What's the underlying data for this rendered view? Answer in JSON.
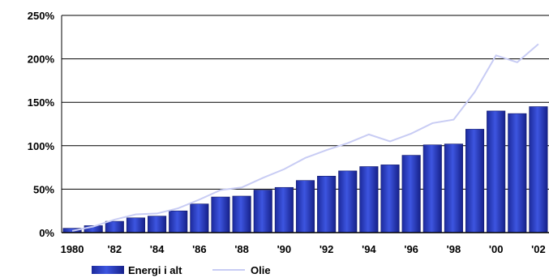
{
  "chart_data": {
    "type": "bar",
    "categories": [
      "1980",
      "1981",
      "1982",
      "1983",
      "1984",
      "1985",
      "1986",
      "1987",
      "1988",
      "1989",
      "1990",
      "1991",
      "1992",
      "1993",
      "1994",
      "1995",
      "1996",
      "1997",
      "1998",
      "1999",
      "2000",
      "2001",
      "2002"
    ],
    "x_tick_labels": [
      "1980",
      "",
      "'82",
      "",
      "'84",
      "",
      "'86",
      "",
      "'88",
      "",
      "'90",
      "",
      "'92",
      "",
      "'94",
      "",
      "'96",
      "",
      "'98",
      "",
      "'00",
      "",
      "'02"
    ],
    "series": [
      {
        "name": "Energi i alt",
        "type": "bar",
        "color": "#2f3fd0",
        "values": [
          5,
          8,
          13,
          17,
          19,
          25,
          33,
          41,
          42,
          49,
          52,
          60,
          65,
          71,
          76,
          78,
          89,
          101,
          102,
          119,
          140,
          137,
          145
        ]
      },
      {
        "name": "Olie",
        "type": "line",
        "color": "#c8ccf4",
        "values": [
          2,
          7,
          15,
          21,
          22,
          28,
          38,
          49,
          52,
          63,
          73,
          86,
          95,
          103,
          113,
          105,
          114,
          126,
          130,
          162,
          204,
          196,
          217
        ]
      }
    ],
    "ylim": [
      0,
      250
    ],
    "y_ticks": [
      0,
      50,
      100,
      150,
      200,
      250
    ],
    "y_tick_format": "{v}%",
    "grid": true,
    "legend_position": "bottom-left"
  }
}
